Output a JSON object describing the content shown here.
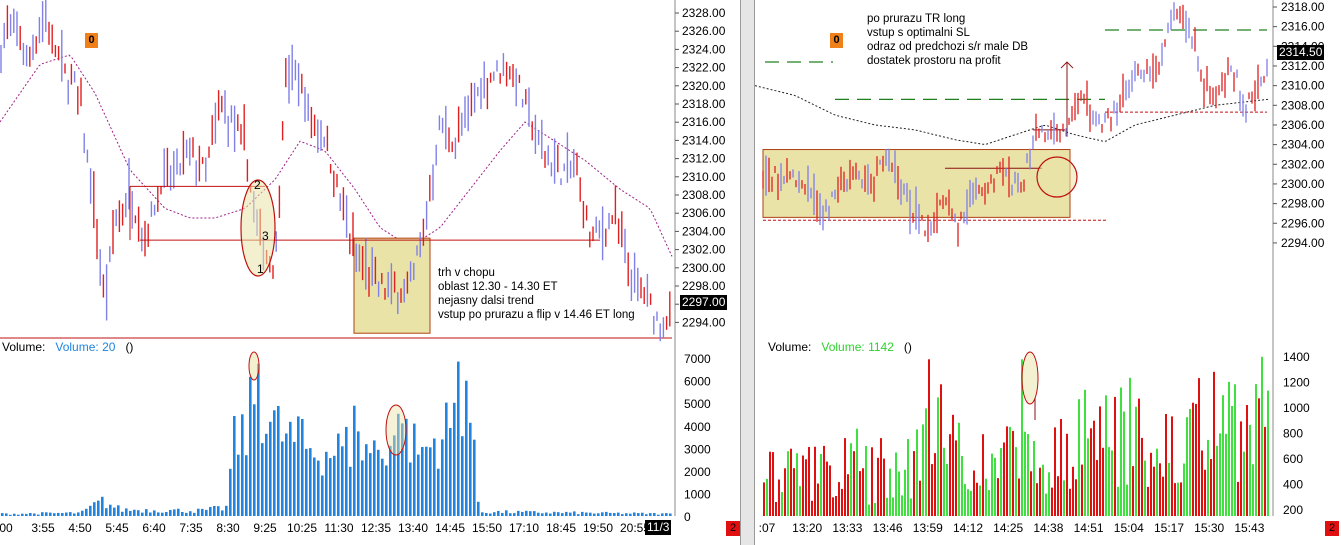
{
  "chart_data": [
    {
      "type": "bar",
      "panel": "left",
      "price_axis": {
        "ticks": [
          "2328.00",
          "2326.00",
          "2324.00",
          "2322.00",
          "2320.00",
          "2318.00",
          "2316.00",
          "2314.00",
          "2312.00",
          "2310.00",
          "2308.00",
          "2306.00",
          "2304.00",
          "2302.00",
          "2300.00",
          "2298.00",
          "2296.00",
          "2294.00"
        ],
        "ylim": [
          2293.5,
          2328.5
        ]
      },
      "last_price": "2297.00",
      "volume_axis": {
        "ticks": [
          "7000",
          "6000",
          "5000",
          "4000",
          "3000",
          "2000",
          "1000",
          "0"
        ],
        "ylim": [
          0,
          7300
        ]
      },
      "time_axis": {
        "ticks": [
          "00",
          "3:55",
          "4:50",
          "5:45",
          "6:40",
          "7:35",
          "8:30",
          "9:25",
          "10:25",
          "11:30",
          "12:35",
          "13:40",
          "14:45",
          "15:50",
          "17:10",
          "18:45",
          "19:50",
          "20:55"
        ],
        "date_tag": "11/3"
      },
      "volume_header": {
        "label": "Volume:",
        "series": "Volume: 20",
        "parens": "()"
      },
      "zero_badge": "0",
      "red_badge": "2",
      "annotation": [
        "trh v chopu",
        "oblast 12.30 - 14.30 ET",
        "nejasny dalsi trend",
        "vstup po prurazu a flip v 14.46 ET long"
      ],
      "ellipse_labels": [
        "2",
        "3",
        "1"
      ],
      "price_anchors": [
        [
          0,
          2324
        ],
        [
          12,
          2327
        ],
        [
          28,
          2323
        ],
        [
          45,
          2327.5
        ],
        [
          62,
          2322
        ],
        [
          80,
          2319
        ],
        [
          95,
          2306
        ],
        [
          105,
          2297
        ],
        [
          115,
          2306
        ],
        [
          130,
          2309
        ],
        [
          145,
          2304
        ],
        [
          160,
          2310
        ],
        [
          175,
          2311
        ],
        [
          190,
          2313
        ],
        [
          205,
          2311
        ],
        [
          220,
          2318
        ],
        [
          232,
          2316
        ],
        [
          245,
          2314
        ],
        [
          255,
          2306
        ],
        [
          265,
          2303
        ],
        [
          275,
          2301
        ],
        [
          285,
          2321
        ],
        [
          300,
          2321
        ],
        [
          312,
          2316
        ],
        [
          325,
          2315
        ],
        [
          340,
          2308
        ],
        [
          355,
          2303
        ],
        [
          370,
          2300
        ],
        [
          385,
          2299
        ],
        [
          400,
          2299
        ],
        [
          412,
          2300
        ],
        [
          425,
          2306
        ],
        [
          440,
          2316
        ],
        [
          455,
          2314
        ],
        [
          470,
          2318
        ],
        [
          490,
          2321
        ],
        [
          512,
          2322
        ],
        [
          525,
          2318
        ],
        [
          540,
          2314
        ],
        [
          560,
          2311
        ],
        [
          575,
          2312
        ],
        [
          590,
          2304
        ],
        [
          605,
          2305
        ],
        [
          615,
          2307
        ],
        [
          630,
          2300
        ],
        [
          645,
          2298
        ],
        [
          660,
          2295
        ],
        [
          672,
          2296
        ]
      ],
      "ma_anchors": [
        [
          0,
          2316
        ],
        [
          40,
          2322
        ],
        [
          70,
          2323
        ],
        [
          95,
          2319
        ],
        [
          130,
          2311
        ],
        [
          165,
          2307
        ],
        [
          190,
          2306
        ],
        [
          215,
          2306
        ],
        [
          245,
          2307
        ],
        [
          275,
          2310
        ],
        [
          300,
          2314
        ],
        [
          325,
          2313
        ],
        [
          355,
          2309
        ],
        [
          380,
          2305
        ],
        [
          410,
          2303
        ],
        [
          440,
          2305
        ],
        [
          470,
          2309
        ],
        [
          500,
          2313
        ],
        [
          525,
          2316
        ],
        [
          555,
          2314
        ],
        [
          585,
          2312
        ],
        [
          620,
          2309
        ],
        [
          650,
          2307
        ],
        [
          672,
          2302
        ]
      ],
      "volume_anchors": [
        [
          0,
          100
        ],
        [
          80,
          150
        ],
        [
          100,
          700
        ],
        [
          120,
          300
        ],
        [
          200,
          250
        ],
        [
          225,
          400
        ],
        [
          232,
          3600
        ],
        [
          245,
          4200
        ],
        [
          255,
          6500
        ],
        [
          270,
          4600
        ],
        [
          290,
          3800
        ],
        [
          320,
          3200
        ],
        [
          350,
          3500
        ],
        [
          380,
          3300
        ],
        [
          397,
          4300
        ],
        [
          420,
          3200
        ],
        [
          440,
          4000
        ],
        [
          455,
          5000
        ],
        [
          465,
          7000
        ],
        [
          478,
          200
        ],
        [
          672,
          100
        ]
      ],
      "volume_spikes": [
        [
          254,
          6900
        ],
        [
          353,
          5000
        ],
        [
          455,
          7000
        ],
        [
          398,
          4200
        ],
        [
          300,
          4400
        ]
      ],
      "colors": {
        "up_bar": "#8080e8",
        "down_bar": "#e02020",
        "volume": "#2185e0",
        "moving_average": "#a0208a",
        "level_line": "#c01010",
        "shaded_box": "#e9e3a8"
      }
    },
    {
      "type": "bar",
      "panel": "right",
      "price_axis": {
        "ticks": [
          "2318.00",
          "2316.00",
          "2314.00",
          "2312.00",
          "2310.00",
          "2308.00",
          "2306.00",
          "2304.00",
          "2302.00",
          "2300.00",
          "2298.00",
          "2296.00",
          "2294.00"
        ],
        "ylim": [
          2293.0,
          2318.5
        ]
      },
      "last_price": "2314.50",
      "volume_axis": {
        "ticks": [
          "1400",
          "1200",
          "1000",
          "800",
          "600",
          "400",
          "200"
        ],
        "ylim": [
          150,
          1450
        ]
      },
      "time_axis": {
        "ticks": [
          ":07",
          "13:20",
          "13:33",
          "13:46",
          "13:59",
          "14:12",
          "14:25",
          "14:38",
          "14:51",
          "15:04",
          "15:17",
          "15:30",
          "15:43"
        ]
      },
      "volume_header": {
        "label": "Volume:",
        "series": "Volume: 1142",
        "parens": "()"
      },
      "zero_badge": "0",
      "red_badge": "2",
      "annotation": [
        "po prurazu TR long",
        "vstup s optimalni SL",
        "odraz od predchozi s/r male DB",
        "dostatek  prostoru na profit"
      ],
      "price_anchors": [
        [
          0,
          2302
        ],
        [
          20,
          2301
        ],
        [
          40,
          2301
        ],
        [
          55,
          2299
        ],
        [
          70,
          2297
        ],
        [
          85,
          2300
        ],
        [
          100,
          2301
        ],
        [
          115,
          2300
        ],
        [
          130,
          2303
        ],
        [
          145,
          2300
        ],
        [
          160,
          2297
        ],
        [
          175,
          2295
        ],
        [
          190,
          2299
        ],
        [
          205,
          2296
        ],
        [
          220,
          2299
        ],
        [
          235,
          2300
        ],
        [
          250,
          2302
        ],
        [
          265,
          2299
        ],
        [
          280,
          2305
        ],
        [
          295,
          2306
        ],
        [
          305,
          2305
        ],
        [
          315,
          2307
        ],
        [
          325,
          2309
        ],
        [
          340,
          2306
        ],
        [
          350,
          2307
        ],
        [
          365,
          2308
        ],
        [
          380,
          2312
        ],
        [
          395,
          2311
        ],
        [
          405,
          2312
        ],
        [
          415,
          2317
        ],
        [
          425,
          2318
        ],
        [
          438,
          2315
        ],
        [
          450,
          2310
        ],
        [
          465,
          2310
        ],
        [
          475,
          2313
        ],
        [
          490,
          2308
        ],
        [
          500,
          2309
        ],
        [
          512,
          2312
        ]
      ],
      "ma_anchors": [
        [
          0,
          2310
        ],
        [
          40,
          2309
        ],
        [
          80,
          2307
        ],
        [
          120,
          2306
        ],
        [
          160,
          2305.5
        ],
        [
          200,
          2304.5
        ],
        [
          230,
          2304
        ],
        [
          260,
          2305
        ],
        [
          290,
          2306
        ],
        [
          320,
          2305
        ],
        [
          350,
          2304.3
        ],
        [
          380,
          2306
        ],
        [
          420,
          2307
        ],
        [
          460,
          2308
        ],
        [
          512,
          2308.6
        ]
      ],
      "volume_anchors": [
        [
          0,
          400
        ],
        [
          30,
          600
        ],
        [
          60,
          500
        ],
        [
          90,
          650
        ],
        [
          120,
          550
        ],
        [
          150,
          650
        ],
        [
          180,
          800
        ],
        [
          210,
          650
        ],
        [
          240,
          600
        ],
        [
          270,
          800
        ],
        [
          300,
          700
        ],
        [
          330,
          900
        ],
        [
          360,
          950
        ],
        [
          390,
          850
        ],
        [
          420,
          900
        ],
        [
          450,
          900
        ],
        [
          480,
          950
        ],
        [
          512,
          1100
        ]
      ],
      "volume_spikes": [
        [
          175,
          1400
        ],
        [
          185,
          1200
        ],
        [
          268,
          1400
        ],
        [
          360,
          1100
        ],
        [
          445,
          1250
        ],
        [
          460,
          1300
        ],
        [
          512,
          1150
        ]
      ],
      "colors": {
        "up_volume": "#40e040",
        "down_volume": "#e01010",
        "up_bar": "#8080e8",
        "down_bar": "#e02020",
        "moving_average": "#222222",
        "level_line": "#c01010",
        "green_level": "#208020",
        "shaded_box": "#e9e3a8"
      }
    }
  ]
}
